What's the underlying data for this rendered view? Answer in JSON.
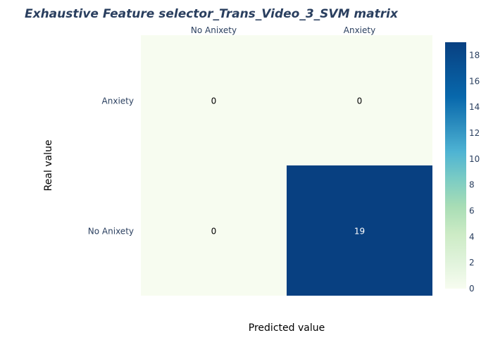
{
  "chart_data": {
    "type": "heatmap",
    "title": "Exhaustive Feature selector_Trans_Video_3_SVM matrix",
    "xlabel": "Predicted value",
    "ylabel": "Real value",
    "x_categories": [
      "No Anixety",
      "Anxiety"
    ],
    "y_categories_top_to_bottom": [
      "Anxiety",
      "No Anixety"
    ],
    "z_top_to_bottom": [
      [
        0,
        0
      ],
      [
        0,
        19
      ]
    ],
    "colorscale": {
      "name": "GnBu",
      "min": 0,
      "max": 19,
      "ticks": [
        "0",
        "2",
        "4",
        "6",
        "8",
        "10",
        "12",
        "14",
        "16",
        "18"
      ]
    },
    "x_axis_side": "top",
    "colors": {
      "low": "#f7fcf0",
      "high": "#084081",
      "title": "#2a3f5f"
    }
  }
}
